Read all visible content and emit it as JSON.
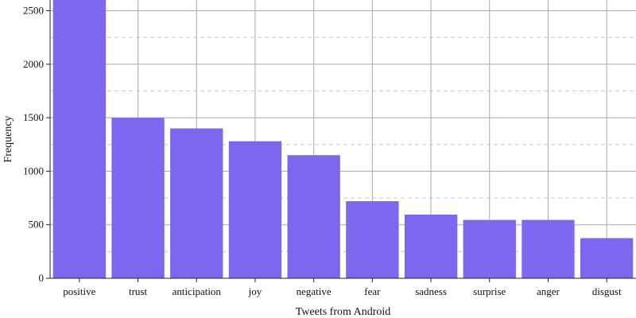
{
  "chart_data": {
    "type": "bar",
    "categories": [
      "positive",
      "trust",
      "anticipation",
      "joy",
      "negative",
      "fear",
      "sadness",
      "surprise",
      "anger",
      "disgust"
    ],
    "values": [
      2650,
      1500,
      1400,
      1280,
      1150,
      720,
      595,
      545,
      545,
      375
    ],
    "xlabel": "Tweets from Android",
    "ylabel": "Frequency",
    "ylim": [
      0,
      2600
    ],
    "yticks": [
      0,
      500,
      1000,
      1500,
      2000,
      2500
    ],
    "grid": true,
    "colors": {
      "bar": "#7B68EE",
      "grid_major": "#aaaaaa",
      "grid_minor": "#c8c8c8",
      "axis": "#222222"
    }
  }
}
